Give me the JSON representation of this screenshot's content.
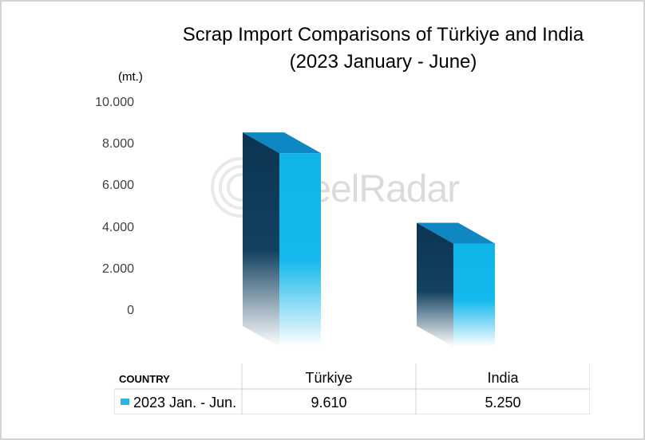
{
  "chart_data": {
    "type": "bar",
    "title": "Scrap Import Comparisons of Türkiye and India",
    "subtitle": "(2023 January - June)",
    "unit_label": "(mt.)",
    "categories": [
      "Türkiye",
      "India"
    ],
    "series": [
      {
        "name": "2023 Jan. - Jun.",
        "values": [
          9.61,
          5.25
        ],
        "display_values": [
          "9.610",
          "5.250"
        ]
      }
    ],
    "ylim": [
      0,
      10000
    ],
    "y_ticks": [
      "10.000",
      "8.000",
      "6.000",
      "4.000",
      "2.000",
      "0"
    ],
    "table_header": "COUNTRY",
    "colors": {
      "bar_front": "#0fb5ea",
      "bar_side": "#0a3553",
      "bar_top": "#0e87c2"
    }
  },
  "watermark": "SteelRadar"
}
